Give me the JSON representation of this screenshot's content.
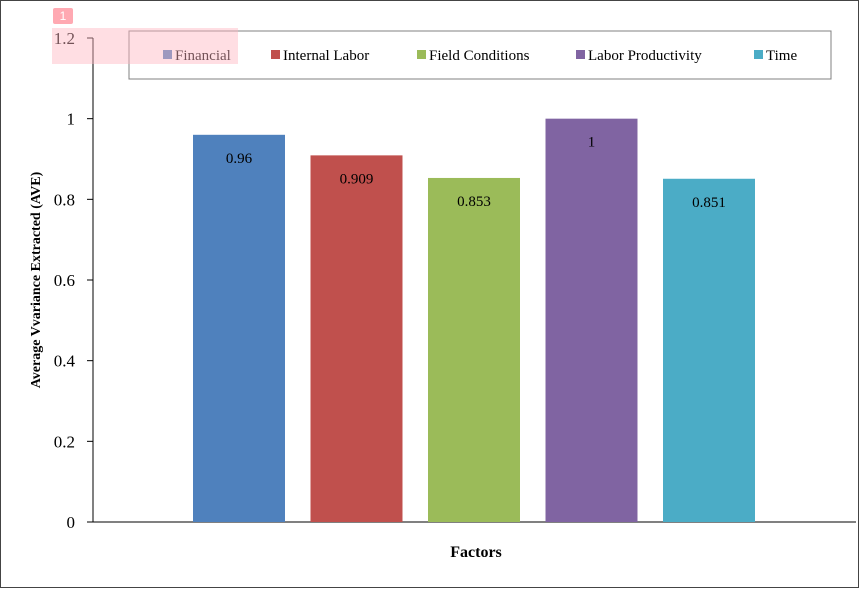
{
  "chart_data": {
    "type": "bar",
    "categories": [
      "Financial",
      "Internal Labor",
      "Field Conditions",
      "Labor Productivity",
      "Time"
    ],
    "values": [
      0.96,
      0.909,
      0.853,
      1,
      0.851
    ],
    "value_labels": [
      "0.96",
      "0.909",
      "0.853",
      "1",
      "0.851"
    ],
    "colors": [
      "#4f81bd",
      "#c0504d",
      "#9bbb59",
      "#8064a2",
      "#4bacc6"
    ],
    "xlabel": "Factors",
    "ylabel": "Average Vvariance Extracted (AVE)",
    "ylim": [
      0,
      1.2
    ],
    "yticks": [
      "0",
      "0.2",
      "0.4",
      "0.6",
      "0.8",
      "1",
      "1.2"
    ],
    "grid": false,
    "legend_position": "top"
  },
  "annotations": {
    "marker_1": "1"
  }
}
